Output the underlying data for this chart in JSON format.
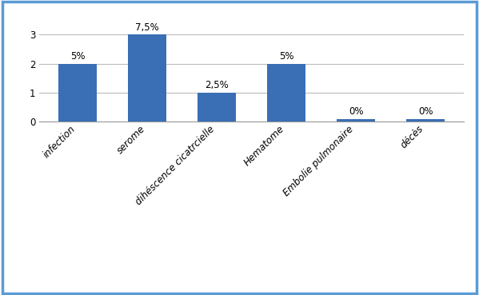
{
  "categories": [
    "infection",
    "serome",
    "dihéscence cicatrcielle",
    "Hematome",
    "Embolie pulmonaire",
    "décès"
  ],
  "values": [
    2,
    3,
    1,
    2,
    0.08,
    0.08
  ],
  "labels": [
    "5%",
    "7,5%",
    "2,5%",
    "5%",
    "0%",
    "0%"
  ],
  "bar_color": "#3A6EB5",
  "yticks": [
    0,
    1,
    2,
    3
  ],
  "ylim": [
    0,
    3.6
  ],
  "background_color": "#ffffff",
  "border_color": "#5B9BD5",
  "grid_color": "#bbbbbb",
  "label_fontsize": 8.5,
  "tick_fontsize": 8.5,
  "annotation_fontsize": 8.5
}
